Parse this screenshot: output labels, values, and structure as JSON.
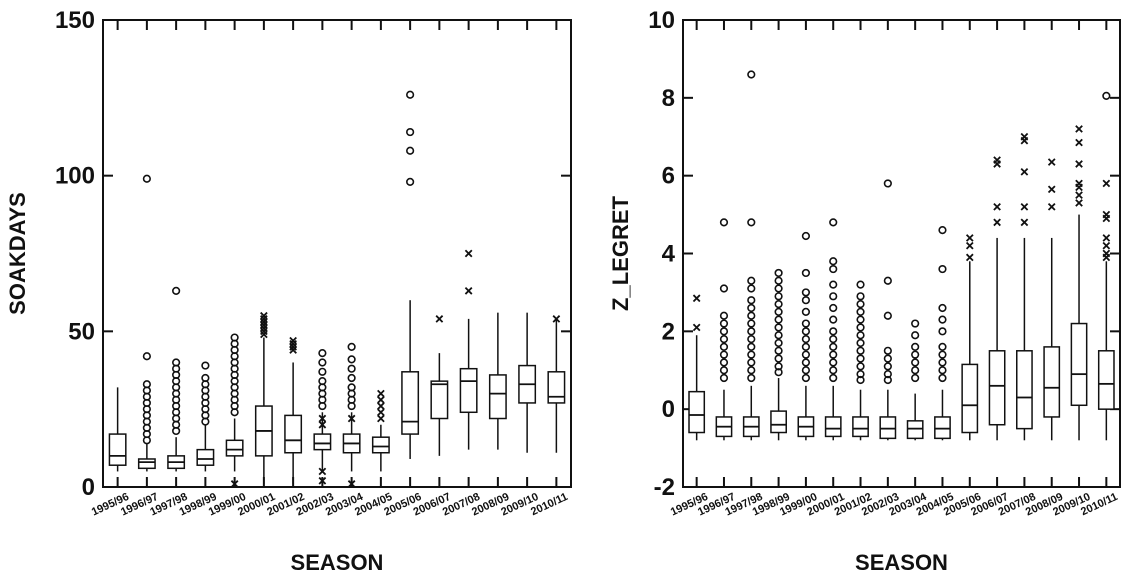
{
  "chart_data": [
    {
      "type": "boxplot",
      "xlabel": "SEASON",
      "ylabel": "SOAKDAYS",
      "ylim": [
        0,
        150
      ],
      "yticks": [
        0,
        50,
        100,
        150
      ],
      "categories": [
        "1995/96",
        "1996/97",
        "1997/98",
        "1998/99",
        "1999/00",
        "2000/01",
        "2001/02",
        "2002/03",
        "2003/04",
        "2004/05",
        "2005/06",
        "2006/07",
        "2007/08",
        "2008/09",
        "2009/10",
        "2010/11"
      ],
      "boxes": [
        {
          "whisker_low": 5,
          "q1": 7,
          "median": 10,
          "q3": 17,
          "whisker_high": 32
        },
        {
          "whisker_low": 5,
          "q1": 6,
          "median": 8,
          "q3": 9,
          "whisker_high": 14
        },
        {
          "whisker_low": 5,
          "q1": 6,
          "median": 8,
          "q3": 10,
          "whisker_high": 16
        },
        {
          "whisker_low": 5,
          "q1": 7,
          "median": 9,
          "q3": 12,
          "whisker_high": 20
        },
        {
          "whisker_low": 5,
          "q1": 10,
          "median": 12,
          "q3": 15,
          "whisker_high": 22
        },
        {
          "whisker_low": 1,
          "q1": 10,
          "median": 18,
          "q3": 26,
          "whisker_high": 48
        },
        {
          "whisker_low": 1,
          "q1": 11,
          "median": 15,
          "q3": 23,
          "whisker_high": 40
        },
        {
          "whisker_low": 5,
          "q1": 12,
          "median": 14,
          "q3": 17,
          "whisker_high": 24
        },
        {
          "whisker_low": 5,
          "q1": 11,
          "median": 14,
          "q3": 17,
          "whisker_high": 24
        },
        {
          "whisker_low": 5,
          "q1": 11,
          "median": 13,
          "q3": 16,
          "whisker_high": 20
        },
        {
          "whisker_low": 9,
          "q1": 17,
          "median": 21,
          "q3": 37,
          "whisker_high": 60
        },
        {
          "whisker_low": 10,
          "q1": 22,
          "median": 33,
          "q3": 34,
          "whisker_high": 43
        },
        {
          "whisker_low": 12,
          "q1": 24,
          "median": 34,
          "q3": 38,
          "whisker_high": 54
        },
        {
          "whisker_low": 12,
          "q1": 22,
          "median": 30,
          "q3": 36,
          "whisker_high": 56
        },
        {
          "whisker_low": 11,
          "q1": 27,
          "median": 33,
          "q3": 39,
          "whisker_high": 56
        },
        {
          "whisker_low": 11,
          "q1": 27,
          "median": 29,
          "q3": 37,
          "whisker_high": 54
        }
      ],
      "outliers_circle": [
        [],
        [
          42,
          33,
          31,
          29,
          27,
          25,
          23,
          21,
          19,
          17,
          15,
          99
        ],
        [
          40,
          38,
          36,
          34,
          32,
          30,
          28,
          26,
          24,
          22,
          20,
          18,
          63
        ],
        [
          39,
          35,
          33,
          31,
          29,
          27,
          25,
          23,
          21
        ],
        [
          48,
          46,
          44,
          42,
          40,
          38,
          36,
          34,
          32,
          30,
          28,
          26,
          24
        ],
        [],
        [],
        [
          43,
          40,
          37,
          34,
          32,
          30,
          28,
          26
        ],
        [
          45,
          41,
          38,
          35,
          32,
          30,
          28,
          26
        ],
        [],
        [
          126,
          114,
          108,
          98
        ],
        [],
        [],
        [],
        [],
        []
      ],
      "outliers_x": [
        [],
        [],
        [],
        [],
        [
          1
        ],
        [
          55,
          54,
          53,
          52,
          51,
          50,
          49
        ],
        [
          47,
          46,
          45,
          44
        ],
        [
          22,
          20,
          5,
          2
        ],
        [
          22,
          1
        ],
        [
          30,
          28,
          26,
          24,
          22
        ],
        [],
        [
          54
        ],
        [
          75,
          63
        ],
        [],
        [],
        [
          54
        ]
      ]
    },
    {
      "type": "boxplot",
      "xlabel": "SEASON",
      "ylabel": "Z_LEGRET",
      "ylim": [
        -2,
        10
      ],
      "yticks": [
        -2,
        0,
        2,
        4,
        6,
        8,
        10
      ],
      "categories": [
        "1995/96",
        "1996/97",
        "1997/98",
        "1998/99",
        "1999/00",
        "2000/01",
        "2001/02",
        "2002/03",
        "2003/04",
        "2004/05",
        "2005/06",
        "2006/07",
        "2007/08",
        "2008/09",
        "2009/10",
        "2010/11"
      ],
      "boxes": [
        {
          "whisker_low": -0.8,
          "q1": -0.6,
          "median": -0.15,
          "q3": 0.45,
          "whisker_high": 1.9
        },
        {
          "whisker_low": -0.8,
          "q1": -0.7,
          "median": -0.45,
          "q3": -0.2,
          "whisker_high": 0.5
        },
        {
          "whisker_low": -0.8,
          "q1": -0.7,
          "median": -0.45,
          "q3": -0.2,
          "whisker_high": 0.6
        },
        {
          "whisker_low": -0.8,
          "q1": -0.6,
          "median": -0.4,
          "q3": -0.05,
          "whisker_high": 0.8
        },
        {
          "whisker_low": -0.8,
          "q1": -0.7,
          "median": -0.45,
          "q3": -0.2,
          "whisker_high": 0.6
        },
        {
          "whisker_low": -0.8,
          "q1": -0.7,
          "median": -0.5,
          "q3": -0.2,
          "whisker_high": 0.6
        },
        {
          "whisker_low": -0.8,
          "q1": -0.7,
          "median": -0.5,
          "q3": -0.2,
          "whisker_high": 0.5
        },
        {
          "whisker_low": -0.8,
          "q1": -0.75,
          "median": -0.5,
          "q3": -0.2,
          "whisker_high": 0.5
        },
        {
          "whisker_low": -0.8,
          "q1": -0.75,
          "median": -0.5,
          "q3": -0.3,
          "whisker_high": 0.4
        },
        {
          "whisker_low": -0.8,
          "q1": -0.75,
          "median": -0.5,
          "q3": -0.2,
          "whisker_high": 0.5
        },
        {
          "whisker_low": -0.8,
          "q1": -0.6,
          "median": 0.1,
          "q3": 1.15,
          "whisker_high": 3.8
        },
        {
          "whisker_low": -0.8,
          "q1": -0.4,
          "median": 0.6,
          "q3": 1.5,
          "whisker_high": 4.4
        },
        {
          "whisker_low": -0.8,
          "q1": -0.5,
          "median": 0.3,
          "q3": 1.5,
          "whisker_high": 4.4
        },
        {
          "whisker_low": -0.8,
          "q1": -0.2,
          "median": 0.55,
          "q3": 1.6,
          "whisker_high": 4.4
        },
        {
          "whisker_low": -0.8,
          "q1": 0.1,
          "median": 0.9,
          "q3": 2.2,
          "whisker_high": 5.0
        },
        {
          "whisker_low": -0.8,
          "q1": 0.0,
          "median": 0.65,
          "q3": 1.5,
          "whisker_high": 3.8
        }
      ],
      "outliers_circle": [
        [],
        [
          2.4,
          2.2,
          2.0,
          1.8,
          1.6,
          1.4,
          1.2,
          1.0,
          0.8,
          3.1,
          4.8
        ],
        [
          3.3,
          3.1,
          2.8,
          2.6,
          2.4,
          2.2,
          2.0,
          1.8,
          1.6,
          1.4,
          1.2,
          1.0,
          0.8,
          4.8,
          8.6
        ],
        [
          3.5,
          3.3,
          3.1,
          2.9,
          2.7,
          2.5,
          2.3,
          2.1,
          1.9,
          1.7,
          1.5,
          1.3,
          1.1,
          0.95
        ],
        [
          3.0,
          2.8,
          2.5,
          2.2,
          2.0,
          1.8,
          1.6,
          1.4,
          1.2,
          1.0,
          0.8,
          3.5,
          4.45
        ],
        [
          3.8,
          3.6,
          3.2,
          2.9,
          2.6,
          2.3,
          2.0,
          1.8,
          1.6,
          1.4,
          1.2,
          1.0,
          0.8,
          4.8
        ],
        [
          3.2,
          2.9,
          2.7,
          2.5,
          2.3,
          2.1,
          1.9,
          1.7,
          1.5,
          1.3,
          1.1,
          0.9,
          0.75
        ],
        [
          1.5,
          1.3,
          1.1,
          0.9,
          0.75,
          2.4,
          3.3,
          5.8
        ],
        [
          2.2,
          1.9,
          1.6,
          1.4,
          1.2,
          1.0,
          0.8
        ],
        [
          2.6,
          2.3,
          2.0,
          1.6,
          1.4,
          1.2,
          1.0,
          0.8,
          3.6,
          4.6
        ],
        [],
        [],
        [],
        [],
        [],
        [
          8.05
        ]
      ],
      "outliers_x": [
        [
          2.85,
          2.1
        ],
        [],
        [],
        [],
        [],
        [],
        [],
        [],
        [],
        [],
        [
          4.4,
          4.2,
          3.9
        ],
        [
          6.4,
          6.3,
          5.2,
          4.8
        ],
        [
          7.0,
          6.9,
          6.1,
          5.2,
          4.8
        ],
        [
          6.35,
          5.65,
          5.2
        ],
        [
          7.2,
          6.85,
          6.3,
          5.8,
          5.7,
          5.5,
          5.3
        ],
        [
          5.8,
          5.0,
          4.9,
          4.4,
          4.2,
          4.0,
          3.9
        ]
      ]
    }
  ]
}
